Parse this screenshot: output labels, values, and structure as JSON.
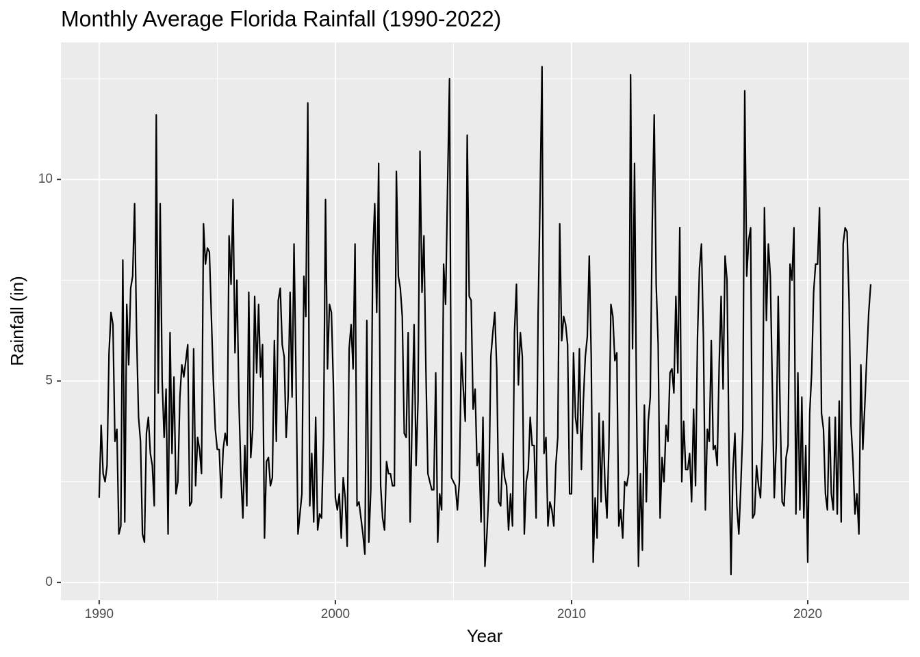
{
  "chart_data": {
    "type": "line",
    "title": "Monthly Average Florida Rainfall (1990-2022)",
    "x_label": "Year",
    "y_label": "Rainfall (in)",
    "xlim": [
      1988.38,
      2024.29
    ],
    "ylim": [
      -0.44,
      13.4
    ],
    "xticks": [
      1990,
      2000,
      2010,
      2020
    ],
    "yticks": [
      0,
      5,
      10
    ],
    "grid": true,
    "x": [
      1990,
      1990.083,
      1990.167,
      1990.25,
      1990.333,
      1990.417,
      1990.5,
      1990.583,
      1990.667,
      1990.75,
      1990.833,
      1990.917,
      1991,
      1991.083,
      1991.167,
      1991.25,
      1991.333,
      1991.417,
      1991.5,
      1991.583,
      1991.667,
      1991.75,
      1991.833,
      1991.917,
      1992,
      1992.083,
      1992.167,
      1992.25,
      1992.333,
      1992.417,
      1992.5,
      1992.583,
      1992.667,
      1992.75,
      1992.833,
      1992.917,
      1993,
      1993.083,
      1993.167,
      1993.25,
      1993.333,
      1993.417,
      1993.5,
      1993.583,
      1993.667,
      1993.75,
      1993.833,
      1993.917,
      1994,
      1994.083,
      1994.167,
      1994.25,
      1994.333,
      1994.417,
      1994.5,
      1994.583,
      1994.667,
      1994.75,
      1994.833,
      1994.917,
      1995,
      1995.083,
      1995.167,
      1995.25,
      1995.333,
      1995.417,
      1995.5,
      1995.583,
      1995.667,
      1995.75,
      1995.833,
      1995.917,
      1996,
      1996.083,
      1996.167,
      1996.25,
      1996.333,
      1996.417,
      1996.5,
      1996.583,
      1996.667,
      1996.75,
      1996.833,
      1996.917,
      1997,
      1997.083,
      1997.167,
      1997.25,
      1997.333,
      1997.417,
      1997.5,
      1997.583,
      1997.667,
      1997.75,
      1997.833,
      1997.917,
      1998,
      1998.083,
      1998.167,
      1998.25,
      1998.333,
      1998.417,
      1998.5,
      1998.583,
      1998.667,
      1998.75,
      1998.833,
      1998.917,
      1999,
      1999.083,
      1999.167,
      1999.25,
      1999.333,
      1999.417,
      1999.5,
      1999.583,
      1999.667,
      1999.75,
      1999.833,
      1999.917,
      2000,
      2000.083,
      2000.167,
      2000.25,
      2000.333,
      2000.417,
      2000.5,
      2000.583,
      2000.667,
      2000.75,
      2000.833,
      2000.917,
      2001,
      2001.083,
      2001.167,
      2001.25,
      2001.333,
      2001.417,
      2001.5,
      2001.583,
      2001.667,
      2001.75,
      2001.833,
      2001.917,
      2002,
      2002.083,
      2002.167,
      2002.25,
      2002.333,
      2002.417,
      2002.5,
      2002.583,
      2002.667,
      2002.75,
      2002.833,
      2002.917,
      2003,
      2003.083,
      2003.167,
      2003.25,
      2003.333,
      2003.417,
      2003.5,
      2003.583,
      2003.667,
      2003.75,
      2003.833,
      2003.917,
      2004,
      2004.083,
      2004.167,
      2004.25,
      2004.333,
      2004.417,
      2004.5,
      2004.583,
      2004.667,
      2004.75,
      2004.833,
      2004.917,
      2005,
      2005.083,
      2005.167,
      2005.25,
      2005.333,
      2005.417,
      2005.5,
      2005.583,
      2005.667,
      2005.75,
      2005.833,
      2005.917,
      2006,
      2006.083,
      2006.167,
      2006.25,
      2006.333,
      2006.417,
      2006.5,
      2006.583,
      2006.667,
      2006.75,
      2006.833,
      2006.917,
      2007,
      2007.083,
      2007.167,
      2007.25,
      2007.333,
      2007.417,
      2007.5,
      2007.583,
      2007.667,
      2007.75,
      2007.833,
      2007.917,
      2008,
      2008.083,
      2008.167,
      2008.25,
      2008.333,
      2008.417,
      2008.5,
      2008.583,
      2008.667,
      2008.75,
      2008.833,
      2008.917,
      2009,
      2009.083,
      2009.167,
      2009.25,
      2009.333,
      2009.417,
      2009.5,
      2009.583,
      2009.667,
      2009.75,
      2009.833,
      2009.917,
      2010,
      2010.083,
      2010.167,
      2010.25,
      2010.333,
      2010.417,
      2010.5,
      2010.583,
      2010.667,
      2010.75,
      2010.833,
      2010.917,
      2011,
      2011.083,
      2011.167,
      2011.25,
      2011.333,
      2011.417,
      2011.5,
      2011.583,
      2011.667,
      2011.75,
      2011.833,
      2011.917,
      2012,
      2012.083,
      2012.167,
      2012.25,
      2012.333,
      2012.417,
      2012.5,
      2012.583,
      2012.667,
      2012.75,
      2012.833,
      2012.917,
      2013,
      2013.083,
      2013.167,
      2013.25,
      2013.333,
      2013.417,
      2013.5,
      2013.583,
      2013.667,
      2013.75,
      2013.833,
      2013.917,
      2014,
      2014.083,
      2014.167,
      2014.25,
      2014.333,
      2014.417,
      2014.5,
      2014.583,
      2014.667,
      2014.75,
      2014.833,
      2014.917,
      2015,
      2015.083,
      2015.167,
      2015.25,
      2015.333,
      2015.417,
      2015.5,
      2015.583,
      2015.667,
      2015.75,
      2015.833,
      2015.917,
      2016,
      2016.083,
      2016.167,
      2016.25,
      2016.333,
      2016.417,
      2016.5,
      2016.583,
      2016.667,
      2016.75,
      2016.833,
      2016.917,
      2017,
      2017.083,
      2017.167,
      2017.25,
      2017.333,
      2017.417,
      2017.5,
      2017.583,
      2017.667,
      2017.75,
      2017.833,
      2017.917,
      2018,
      2018.083,
      2018.167,
      2018.25,
      2018.333,
      2018.417,
      2018.5,
      2018.583,
      2018.667,
      2018.75,
      2018.833,
      2018.917,
      2019,
      2019.083,
      2019.167,
      2019.25,
      2019.333,
      2019.417,
      2019.5,
      2019.583,
      2019.667,
      2019.75,
      2019.833,
      2019.917,
      2020,
      2020.083,
      2020.167,
      2020.25,
      2020.333,
      2020.417,
      2020.5,
      2020.583,
      2020.667,
      2020.75,
      2020.833,
      2020.917,
      2021,
      2021.083,
      2021.167,
      2021.25,
      2021.333,
      2021.417,
      2021.5,
      2021.583,
      2021.667,
      2021.75,
      2021.833,
      2021.917,
      2022,
      2022.083,
      2022.167,
      2022.25,
      2022.333,
      2022.417,
      2022.5,
      2022.583,
      2022.667
    ],
    "series": [
      {
        "name": "Rainfall",
        "color": "#000000",
        "values": [
          2.1,
          3.9,
          2.7,
          2.5,
          2.9,
          5.7,
          6.7,
          6.4,
          3.5,
          3.8,
          1.2,
          1.4,
          8.0,
          1.5,
          6.9,
          5.4,
          7.3,
          7.6,
          9.4,
          6.2,
          4.1,
          3.5,
          1.2,
          1.0,
          3.7,
          4.1,
          3.2,
          2.9,
          1.9,
          11.6,
          4.7,
          9.4,
          5.0,
          3.6,
          4.8,
          1.2,
          6.2,
          3.2,
          5.1,
          2.2,
          2.5,
          4.6,
          5.4,
          5.1,
          5.5,
          5.9,
          1.9,
          2.0,
          5.8,
          2.4,
          3.6,
          3.3,
          2.7,
          8.9,
          7.9,
          8.3,
          8.2,
          6.6,
          5.0,
          3.8,
          3.3,
          3.3,
          2.1,
          3.3,
          3.7,
          3.4,
          8.6,
          7.4,
          9.5,
          5.7,
          7.5,
          4.5,
          2.7,
          1.6,
          3.4,
          1.9,
          7.2,
          3.1,
          3.8,
          7.1,
          5.2,
          6.9,
          5.1,
          5.9,
          1.1,
          3.0,
          3.1,
          2.4,
          2.6,
          6.0,
          3.5,
          7.0,
          7.3,
          5.9,
          5.6,
          3.6,
          4.6,
          7.2,
          4.6,
          8.4,
          5.2,
          1.2,
          1.7,
          2.2,
          7.6,
          6.6,
          11.9,
          1.9,
          3.2,
          1.5,
          4.1,
          1.3,
          1.7,
          1.6,
          3.6,
          9.5,
          5.3,
          6.9,
          6.7,
          4.9,
          2.1,
          1.8,
          2.2,
          1.1,
          2.6,
          2.1,
          0.9,
          5.8,
          6.4,
          5.3,
          8.4,
          1.9,
          2.0,
          1.6,
          1.2,
          0.7,
          6.5,
          1.0,
          2.3,
          8.1,
          9.4,
          6.7,
          10.4,
          2.4,
          1.6,
          1.3,
          3.0,
          2.7,
          2.7,
          2.4,
          2.4,
          10.2,
          7.6,
          7.3,
          6.6,
          3.7,
          3.6,
          6.2,
          1.5,
          4.1,
          6.4,
          2.9,
          4.5,
          10.7,
          7.2,
          8.6,
          5.3,
          2.7,
          2.5,
          2.3,
          2.3,
          5.2,
          1.0,
          2.2,
          1.8,
          7.9,
          6.9,
          9.8,
          12.5,
          2.6,
          2.5,
          2.4,
          1.8,
          2.5,
          5.7,
          4.8,
          4.0,
          11.1,
          7.1,
          7.0,
          4.3,
          4.8,
          2.9,
          3.2,
          1.5,
          4.1,
          0.4,
          1.2,
          2.3,
          5.6,
          6.2,
          6.7,
          5.3,
          2.0,
          1.9,
          3.2,
          2.6,
          2.4,
          1.3,
          2.2,
          1.4,
          6.2,
          7.4,
          4.9,
          6.2,
          5.6,
          1.2,
          2.5,
          2.8,
          4.1,
          3.4,
          3.4,
          1.6,
          6.6,
          9.5,
          12.8,
          3.2,
          3.6,
          1.4,
          2.0,
          1.8,
          1.4,
          2.9,
          3.6,
          8.9,
          6.0,
          6.6,
          6.4,
          5.9,
          2.2,
          2.2,
          5.7,
          4.1,
          3.7,
          5.8,
          2.8,
          4.5,
          5.6,
          6.1,
          8.1,
          5.6,
          0.5,
          2.1,
          1.1,
          4.2,
          2.0,
          4.0,
          2.4,
          1.6,
          3.4,
          6.9,
          6.6,
          5.5,
          5.7,
          1.4,
          1.8,
          1.1,
          2.5,
          2.4,
          2.7,
          12.6,
          5.8,
          10.4,
          4.5,
          0.4,
          2.7,
          0.8,
          4.4,
          2.0,
          4.0,
          4.6,
          8.9,
          11.6,
          7.4,
          5.9,
          1.6,
          3.1,
          2.5,
          3.9,
          3.5,
          5.2,
          5.3,
          4.7,
          7.1,
          5.2,
          8.8,
          2.5,
          4.0,
          2.8,
          2.8,
          3.2,
          2.0,
          4.3,
          2.4,
          6.1,
          7.8,
          8.4,
          6.1,
          1.8,
          3.8,
          3.5,
          6.0,
          3.3,
          3.4,
          2.9,
          5.4,
          7.1,
          4.8,
          8.1,
          7.5,
          3.3,
          0.2,
          2.8,
          3.7,
          1.9,
          1.2,
          2.4,
          3.8,
          12.2,
          7.6,
          8.5,
          8.8,
          1.6,
          1.7,
          2.9,
          2.4,
          2.1,
          3.6,
          9.3,
          6.5,
          8.4,
          7.6,
          4.9,
          2.1,
          3.4,
          7.1,
          4.2,
          2.0,
          1.9,
          3.1,
          3.4,
          7.9,
          7.5,
          8.8,
          1.7,
          5.2,
          1.8,
          4.6,
          1.6,
          3.4,
          0.5,
          4.2,
          5.2,
          7.2,
          7.9,
          7.9,
          9.3,
          4.2,
          3.8,
          2.2,
          1.8,
          4.1,
          2.2,
          1.8,
          4.1,
          1.7,
          4.5,
          1.5,
          8.4,
          8.8,
          8.7,
          7.0,
          3.9,
          3.0,
          1.7,
          2.2,
          1.2,
          5.4,
          3.3,
          4.4,
          5.6,
          6.7,
          7.4
        ]
      }
    ]
  }
}
